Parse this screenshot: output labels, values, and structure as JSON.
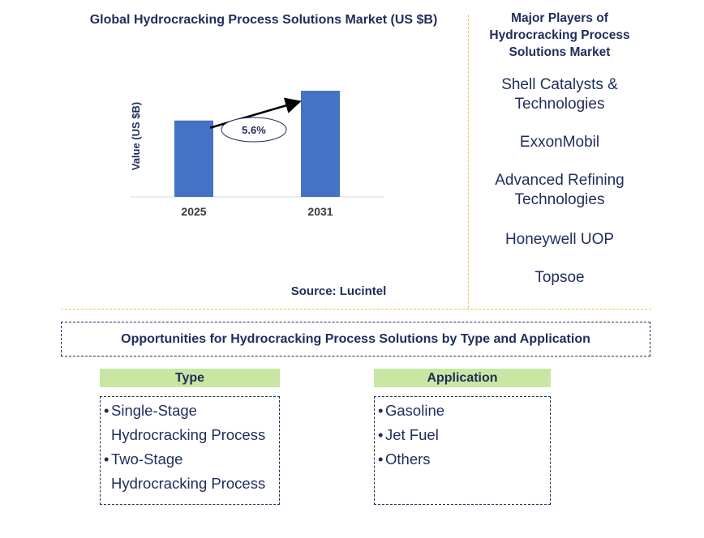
{
  "chart_data": {
    "type": "bar",
    "title": "Global Hydrocracking Process Solutions Market (US $B)",
    "ylabel": "Value (US $B)",
    "xlabel": "",
    "categories": [
      "2025",
      "2031"
    ],
    "values": [
      1.0,
      1.39
    ],
    "bar_color": "#4472c4",
    "annotation": {
      "label": "5.6%",
      "meaning": "CAGR between the two bars"
    },
    "grid": false
  },
  "source": "Source: Lucintel",
  "players": {
    "title": [
      "Major Players of",
      "Hydrocracking Process",
      "Solutions Market"
    ],
    "items": [
      [
        "Shell Catalysts &",
        "Technologies"
      ],
      [
        "ExxonMobil"
      ],
      [
        "Advanced Refining",
        "Technologies"
      ],
      [
        "Honeywell UOP"
      ],
      [
        "Topsoe"
      ]
    ]
  },
  "opportunities": {
    "title": "Opportunities for Hydrocracking Process Solutions by Type and Application",
    "type": {
      "header": "Type",
      "bullet": "•",
      "items": [
        [
          "Single-Stage",
          "Hydrocracking Process"
        ],
        [
          "Two-Stage",
          "Hydrocracking Process"
        ]
      ]
    },
    "application": {
      "header": "Application",
      "bullet": "•",
      "items": [
        [
          "Gasoline"
        ],
        [
          "Jet Fuel"
        ],
        [
          "Others"
        ]
      ]
    }
  },
  "colors": {
    "text": "#1f2d5a",
    "bar": "#4472c4",
    "divider": "#f0c64a",
    "segment_header": "#c9e6a2"
  }
}
